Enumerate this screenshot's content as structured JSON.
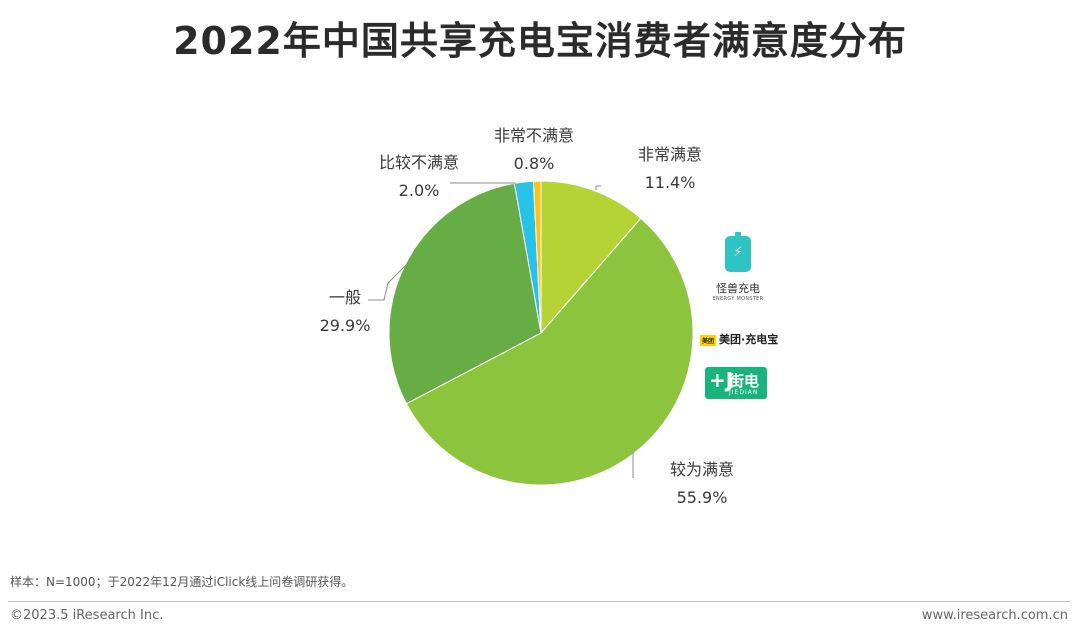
{
  "title": "2022年中国共享充电宝消费者满意度分布",
  "chart_data": {
    "type": "pie",
    "title": "2022年中国共享充电宝消费者满意度分布",
    "slices": [
      {
        "label": "非常满意",
        "value": 11.4,
        "display": "11.4%",
        "color": "#b5d335"
      },
      {
        "label": "较为满意",
        "value": 55.9,
        "display": "55.9%",
        "color": "#8dc43e"
      },
      {
        "label": "一般",
        "value": 29.9,
        "display": "29.9%",
        "color": "#67ad45"
      },
      {
        "label": "比较不满意",
        "value": 2.0,
        "display": "2.0%",
        "color": "#27c2e8"
      },
      {
        "label": "非常不满意",
        "value": 0.8,
        "display": "0.8%",
        "color": "#f5c518"
      }
    ]
  },
  "brands": {
    "energy_monster": {
      "name": "怪兽充电",
      "subtitle": "ENERGY MONSTER",
      "icon": "battery-icon"
    },
    "meituan": {
      "name": "美团·充电宝",
      "badge": "美团"
    },
    "jiedian": {
      "mark": "+J",
      "name": "街电",
      "subtitle": "JIEDIAN"
    }
  },
  "note": "样本：N=1000；于2022年12月通过iClick线上问卷调研获得。",
  "footer": {
    "copyright": "©2023.5 iResearch Inc.",
    "website": "www.iresearch.com.cn"
  }
}
